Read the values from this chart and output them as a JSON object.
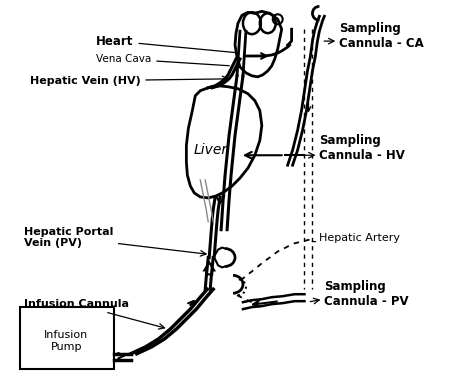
{
  "bg_color": "#ffffff",
  "fig_width": 4.74,
  "fig_height": 3.77,
  "dpi": 100,
  "labels": {
    "heart": "Heart",
    "vena_cava": "Vena Cava",
    "hepatic_vein": "Hepatic Vein (HV)",
    "liver": "Liver",
    "hepatic_portal_vein": "Hepatic Portal\nVein (PV)",
    "infusion_cannula": "Infusion Cannula",
    "infusion_pump": "Infusion\nPump",
    "sampling_ca": "Sampling\nCannula - CA",
    "sampling_hv": "Sampling\nCannula - HV",
    "hepatic_artery": "Hepatic Artery",
    "sampling_pv": "Sampling\nCannula - PV"
  },
  "line_color": "#000000"
}
